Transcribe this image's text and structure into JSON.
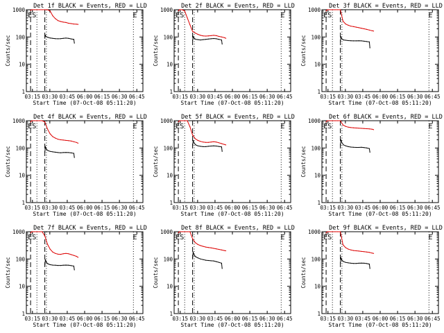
{
  "colors": {
    "events": "#000000",
    "lld": "#dd0000",
    "axes": "#000000",
    "background": "#ffffff"
  },
  "chart_data": [
    {
      "type": "line",
      "title": "Det 1f BLACK = Events, RED = LLD",
      "xlabel": "Start Time (07-Oct-08 05:11:20)",
      "ylabel": "Counts/sec",
      "yscale": "log",
      "ylim": [
        1,
        1000
      ],
      "xlim": [
        "03:10",
        "06:51"
      ],
      "x_ticks": [
        "03:15",
        "03:30",
        "03:45",
        "06:00",
        "06:15",
        "06:30",
        "06:45"
      ],
      "y_ticks": [
        "1",
        "10",
        "100",
        "1000"
      ],
      "annotations": [
        "ES",
        "E"
      ],
      "series": [
        {
          "name": "BLACK = Events",
          "x": [
            "03:45",
            "03:46",
            "03:48",
            "03:51",
            "03:55",
            "04:00",
            "04:05",
            "04:10",
            "04:15",
            "04:20",
            "04:25",
            "04:30",
            "04:35",
            "04:40",
            "04:41"
          ],
          "y": [
            90,
            115,
            102,
            97,
            92,
            89,
            87,
            86,
            87,
            89,
            91,
            89,
            85,
            82,
            60
          ]
        },
        {
          "name": "RED = LLD",
          "x": [
            "03:18",
            "03:20",
            "03:25",
            "03:30",
            "03:35",
            "03:40",
            "03:45",
            "03:50",
            "03:55",
            "04:00",
            "04:05",
            "04:10",
            "04:15",
            "04:20",
            "04:25",
            "04:30",
            "04:35",
            "04:40",
            "04:45",
            "04:48"
          ],
          "y": [
            950,
            1000,
            1000,
            1000,
            1000,
            1000,
            1000,
            1000,
            900,
            600,
            470,
            400,
            370,
            350,
            340,
            320,
            310,
            300,
            295,
            290
          ]
        }
      ]
    },
    {
      "type": "line",
      "title": "Det 2f BLACK = Events, RED = LLD",
      "xlabel": "Start Time (07-Oct-08 05:11:20)",
      "ylabel": "Counts/sec",
      "yscale": "log",
      "ylim": [
        1,
        1000
      ],
      "xlim": [
        "03:10",
        "06:51"
      ],
      "x_ticks": [
        "03:15",
        "03:30",
        "03:45",
        "06:00",
        "06:15",
        "06:30",
        "06:45"
      ],
      "y_ticks": [
        "1",
        "10",
        "100",
        "1000"
      ],
      "annotations": [
        "ES",
        "E"
      ],
      "series": [
        {
          "name": "BLACK = Events",
          "x": [
            "03:45",
            "03:46",
            "03:48",
            "03:51",
            "03:55",
            "04:00",
            "04:05",
            "04:10",
            "04:15",
            "04:20",
            "04:25",
            "04:30",
            "04:35",
            "04:40",
            "04:41"
          ],
          "y": [
            75,
            105,
            90,
            82,
            80,
            78,
            80,
            82,
            84,
            86,
            88,
            86,
            82,
            78,
            55
          ]
        },
        {
          "name": "RED = LLD",
          "x": [
            "03:18",
            "03:20",
            "03:25",
            "03:30",
            "03:35",
            "03:40",
            "03:45",
            "03:50",
            "03:55",
            "04:00",
            "04:05",
            "04:10",
            "04:15",
            "04:20",
            "04:25",
            "04:30",
            "04:35",
            "04:40",
            "04:45",
            "04:48"
          ],
          "y": [
            900,
            1000,
            1000,
            900,
            500,
            280,
            160,
            140,
            125,
            115,
            110,
            108,
            110,
            112,
            115,
            112,
            105,
            100,
            95,
            90
          ]
        }
      ]
    },
    {
      "type": "line",
      "title": "Det 3f BLACK = Events, RED = LLD",
      "xlabel": "Start Time (07-Oct-08 05:11:20)",
      "ylabel": "Counts/sec",
      "yscale": "log",
      "ylim": [
        1,
        1000
      ],
      "xlim": [
        "03:10",
        "06:51"
      ],
      "x_ticks": [
        "03:15",
        "03:30",
        "03:45",
        "06:00",
        "06:15",
        "06:30",
        "06:45"
      ],
      "y_ticks": [
        "1",
        "10",
        "100",
        "1000"
      ],
      "annotations": [
        "ES",
        "E"
      ],
      "series": [
        {
          "name": "BLACK = Events",
          "x": [
            "03:45",
            "03:46",
            "03:48",
            "03:51",
            "03:55",
            "04:00",
            "04:05",
            "04:10",
            "04:15",
            "04:20",
            "04:25",
            "04:30",
            "04:35",
            "04:40",
            "04:41"
          ],
          "y": [
            70,
            100,
            85,
            78,
            76,
            74,
            73,
            72,
            72,
            73,
            72,
            70,
            68,
            66,
            40
          ]
        },
        {
          "name": "RED = LLD",
          "x": [
            "03:18",
            "03:20",
            "03:25",
            "03:30",
            "03:35",
            "03:40",
            "03:45",
            "03:50",
            "03:55",
            "04:00",
            "04:05",
            "04:10",
            "04:15",
            "04:20",
            "04:25",
            "04:30",
            "04:35",
            "04:40",
            "04:45",
            "04:48"
          ],
          "y": [
            900,
            1000,
            1000,
            1000,
            1000,
            1000,
            1000,
            380,
            300,
            270,
            250,
            240,
            230,
            220,
            210,
            200,
            190,
            180,
            170,
            165
          ]
        }
      ]
    },
    {
      "type": "line",
      "title": "Det 4f BLACK = Events, RED = LLD",
      "xlabel": "Start Time (07-Oct-08 05:11:20)",
      "ylabel": "Counts/sec",
      "yscale": "log",
      "ylim": [
        1,
        1000
      ],
      "xlim": [
        "03:10",
        "06:51"
      ],
      "x_ticks": [
        "03:15",
        "03:30",
        "03:45",
        "06:00",
        "06:15",
        "06:30",
        "06:45"
      ],
      "y_ticks": [
        "1",
        "10",
        "100",
        "1000"
      ],
      "annotations": [
        "ES",
        "E"
      ],
      "series": [
        {
          "name": "BLACK = Events",
          "x": [
            "03:45",
            "03:46",
            "03:48",
            "03:51",
            "03:55",
            "04:00",
            "04:05",
            "04:10",
            "04:15",
            "04:20",
            "04:25",
            "04:30",
            "04:35",
            "04:40",
            "04:41"
          ],
          "y": [
            70,
            110,
            90,
            80,
            75,
            72,
            70,
            68,
            67,
            68,
            69,
            68,
            66,
            64,
            45
          ]
        },
        {
          "name": "RED = LLD",
          "x": [
            "03:18",
            "03:20",
            "03:25",
            "03:30",
            "03:35",
            "03:40",
            "03:45",
            "03:50",
            "03:55",
            "04:00",
            "04:05",
            "04:10",
            "04:15",
            "04:20",
            "04:25",
            "04:30",
            "04:35",
            "04:40",
            "04:45",
            "04:48"
          ],
          "y": [
            900,
            1000,
            1000,
            1000,
            1000,
            1000,
            900,
            500,
            330,
            260,
            230,
            210,
            200,
            195,
            190,
            185,
            180,
            170,
            160,
            150
          ]
        }
      ]
    },
    {
      "type": "line",
      "title": "Det 5f BLACK = Events, RED = LLD",
      "xlabel": "Start Time (07-Oct-08 05:11:20)",
      "ylabel": "Counts/sec",
      "yscale": "log",
      "ylim": [
        1,
        1000
      ],
      "xlim": [
        "03:10",
        "06:51"
      ],
      "x_ticks": [
        "03:15",
        "03:30",
        "03:45",
        "06:00",
        "06:15",
        "06:30",
        "06:45"
      ],
      "y_ticks": [
        "1",
        "10",
        "100",
        "1000"
      ],
      "annotations": [
        "ES",
        "E"
      ],
      "series": [
        {
          "name": "BLACK = Events",
          "x": [
            "03:45",
            "03:46",
            "03:48",
            "03:51",
            "03:55",
            "04:00",
            "04:05",
            "04:10",
            "04:15",
            "04:20",
            "04:25",
            "04:30",
            "04:35",
            "04:40",
            "04:41"
          ],
          "y": [
            120,
            190,
            150,
            130,
            120,
            115,
            112,
            112,
            115,
            118,
            120,
            118,
            114,
            110,
            75
          ]
        },
        {
          "name": "RED = LLD",
          "x": [
            "03:18",
            "03:20",
            "03:25",
            "03:30",
            "03:35",
            "03:40",
            "03:45",
            "03:50",
            "03:55",
            "04:00",
            "04:05",
            "04:10",
            "04:15",
            "04:20",
            "04:25",
            "04:30",
            "04:35",
            "04:40",
            "04:45",
            "04:48"
          ],
          "y": [
            900,
            1000,
            1000,
            1000,
            1000,
            600,
            300,
            220,
            190,
            175,
            165,
            160,
            160,
            165,
            170,
            165,
            155,
            145,
            135,
            130
          ]
        }
      ]
    },
    {
      "type": "line",
      "title": "Det 6f BLACK = Events, RED = LLD",
      "xlabel": "Start Time (07-Oct-08 05:11:20)",
      "ylabel": "Counts/sec",
      "yscale": "log",
      "ylim": [
        1,
        1000
      ],
      "xlim": [
        "03:10",
        "06:51"
      ],
      "x_ticks": [
        "03:15",
        "03:30",
        "03:45",
        "06:00",
        "06:15",
        "06:30",
        "06:45"
      ],
      "y_ticks": [
        "1",
        "10",
        "100",
        "1000"
      ],
      "annotations": [
        "ES",
        "E"
      ],
      "series": [
        {
          "name": "BLACK = Events",
          "x": [
            "03:45",
            "03:46",
            "03:48",
            "03:51",
            "03:55",
            "04:00",
            "04:05",
            "04:10",
            "04:15",
            "04:20",
            "04:25",
            "04:30",
            "04:35",
            "04:40",
            "04:41"
          ],
          "y": [
            120,
            200,
            155,
            130,
            120,
            112,
            108,
            106,
            105,
            105,
            106,
            104,
            100,
            95,
            70
          ]
        },
        {
          "name": "RED = LLD",
          "x": [
            "03:18",
            "03:20",
            "03:25",
            "03:30",
            "03:35",
            "03:40",
            "03:45",
            "03:50",
            "03:55",
            "04:00",
            "04:05",
            "04:10",
            "04:15",
            "04:20",
            "04:25",
            "04:30",
            "04:35",
            "04:40",
            "04:45",
            "04:48"
          ],
          "y": [
            900,
            1000,
            1000,
            1000,
            1000,
            1000,
            1000,
            700,
            620,
            580,
            560,
            550,
            540,
            530,
            525,
            520,
            510,
            500,
            490,
            470
          ]
        }
      ]
    },
    {
      "type": "line",
      "title": "Det 7f BLACK = Events, RED = LLD",
      "xlabel": "Start Time (07-Oct-08 05:11:20)",
      "ylabel": "Counts/sec",
      "yscale": "log",
      "ylim": [
        1,
        1000
      ],
      "xlim": [
        "03:10",
        "06:51"
      ],
      "x_ticks": [
        "03:15",
        "03:30",
        "03:45",
        "06:00",
        "06:15",
        "06:30",
        "06:45"
      ],
      "y_ticks": [
        "1",
        "10",
        "100",
        "1000"
      ],
      "annotations": [
        "ES",
        "E"
      ],
      "series": [
        {
          "name": "BLACK = Events",
          "x": [
            "03:45",
            "03:46",
            "03:48",
            "03:51",
            "03:55",
            "04:00",
            "04:05",
            "04:10",
            "04:15",
            "04:20",
            "04:25",
            "04:30",
            "04:35",
            "04:40",
            "04:41"
          ],
          "y": [
            60,
            95,
            75,
            66,
            62,
            60,
            59,
            58,
            58,
            59,
            60,
            59,
            57,
            55,
            40
          ]
        },
        {
          "name": "RED = LLD",
          "x": [
            "03:18",
            "03:20",
            "03:25",
            "03:30",
            "03:35",
            "03:40",
            "03:45",
            "03:50",
            "03:55",
            "04:00",
            "04:05",
            "04:10",
            "04:15",
            "04:20",
            "04:25",
            "04:30",
            "04:35",
            "04:40",
            "04:45",
            "04:48"
          ],
          "y": [
            900,
            1000,
            1000,
            1000,
            1000,
            1000,
            700,
            350,
            230,
            180,
            160,
            150,
            148,
            155,
            160,
            155,
            145,
            135,
            125,
            115
          ]
        }
      ]
    },
    {
      "type": "line",
      "title": "Det 8f BLACK = Events, RED = LLD",
      "xlabel": "Start Time (07-Oct-08 05:11:20)",
      "ylabel": "Counts/sec",
      "yscale": "log",
      "ylim": [
        1,
        1000
      ],
      "xlim": [
        "03:10",
        "06:51"
      ],
      "x_ticks": [
        "03:15",
        "03:30",
        "03:45",
        "06:00",
        "06:15",
        "06:30",
        "06:45"
      ],
      "y_ticks": [
        "1",
        "10",
        "100",
        "1000"
      ],
      "annotations": [
        "ES",
        "E"
      ],
      "series": [
        {
          "name": "BLACK = Events",
          "x": [
            "03:45",
            "03:46",
            "03:48",
            "03:51",
            "03:55",
            "04:00",
            "04:05",
            "04:10",
            "04:15",
            "04:20",
            "04:25",
            "04:30",
            "04:35",
            "04:40",
            "04:41"
          ],
          "y": [
            110,
            180,
            140,
            120,
            110,
            100,
            95,
            90,
            88,
            86,
            85,
            80,
            75,
            70,
            45
          ]
        },
        {
          "name": "RED = LLD",
          "x": [
            "03:18",
            "03:20",
            "03:25",
            "03:30",
            "03:35",
            "03:40",
            "03:45",
            "03:50",
            "03:55",
            "04:00",
            "04:05",
            "04:10",
            "04:15",
            "04:20",
            "04:25",
            "04:30",
            "04:35",
            "04:40",
            "04:45",
            "04:48"
          ],
          "y": [
            900,
            1000,
            1000,
            1000,
            1000,
            1000,
            550,
            400,
            340,
            310,
            290,
            275,
            265,
            255,
            245,
            235,
            225,
            215,
            205,
            200
          ]
        }
      ]
    },
    {
      "type": "line",
      "title": "Det 9f BLACK = Events, RED = LLD",
      "xlabel": "Start Time (07-Oct-08 05:11:20)",
      "ylabel": "Counts/sec",
      "yscale": "log",
      "ylim": [
        1,
        1000
      ],
      "xlim": [
        "03:10",
        "06:51"
      ],
      "x_ticks": [
        "03:15",
        "03:30",
        "03:45",
        "06:00",
        "06:15",
        "06:30",
        "06:45"
      ],
      "y_ticks": [
        "1",
        "10",
        "100",
        "1000"
      ],
      "annotations": [
        "ES",
        "E"
      ],
      "series": [
        {
          "name": "BLACK = Events",
          "x": [
            "03:45",
            "03:46",
            "03:48",
            "03:51",
            "03:55",
            "04:00",
            "04:05",
            "04:10",
            "04:15",
            "04:20",
            "04:25",
            "04:30",
            "04:35",
            "04:40",
            "04:41"
          ],
          "y": [
            70,
            110,
            90,
            80,
            75,
            72,
            70,
            69,
            69,
            70,
            71,
            70,
            68,
            65,
            45
          ]
        },
        {
          "name": "RED = LLD",
          "x": [
            "03:18",
            "03:20",
            "03:25",
            "03:30",
            "03:35",
            "03:40",
            "03:45",
            "03:50",
            "03:55",
            "04:00",
            "04:05",
            "04:10",
            "04:15",
            "04:20",
            "04:25",
            "04:30",
            "04:35",
            "04:40",
            "04:45",
            "04:48"
          ],
          "y": [
            900,
            1000,
            1000,
            1000,
            1000,
            1000,
            1000,
            330,
            260,
            230,
            215,
            205,
            200,
            195,
            190,
            185,
            180,
            175,
            165,
            160
          ]
        }
      ]
    }
  ]
}
